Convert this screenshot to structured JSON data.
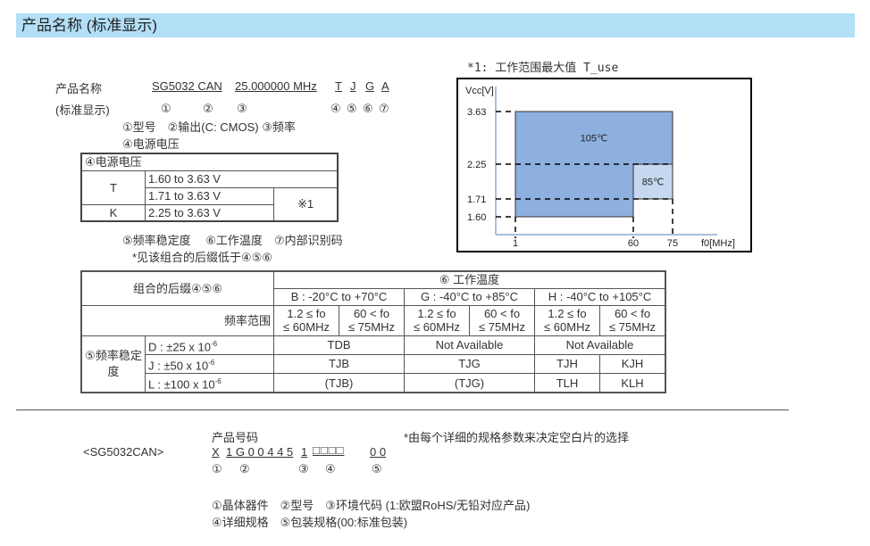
{
  "title": "产品名称 (标准显示)",
  "naming": {
    "label1": "产品名称",
    "label2": "(标准显示)",
    "parts": [
      "SG5032 CAN",
      "25.000000 MHz",
      "T",
      "J",
      "G",
      "A"
    ],
    "markers": [
      "①",
      "②",
      "③",
      "④",
      "⑤",
      "⑥",
      "⑦"
    ],
    "legend1": "①型号　②输出(C: CMOS)  ③频率",
    "legend2": "④电源电压",
    "legend3": "⑤频率稳定度　 ⑥工作温度　⑦内部识别码",
    "legend4": "*见该组合的后缀低于④⑤⑥"
  },
  "voltage_table": {
    "header": "④电源电压",
    "rows": [
      {
        "code": "T",
        "ranges": [
          "1.60 to 3.63 V",
          "1.71 to 3.63 V"
        ]
      },
      {
        "code": "K",
        "ranges": [
          "2.25 to 3.63 V"
        ]
      }
    ],
    "note": "※1"
  },
  "chart_note": "*1: 工作范围最大值 T_use",
  "chart_data": {
    "type": "area",
    "ylabel": "Vcc[V]",
    "xlabel": "f0[MHz]",
    "x_ticks": [
      "1",
      "60",
      "75"
    ],
    "y_ticks": [
      "3.63",
      "2.25",
      "1.71",
      "1.60"
    ],
    "regions": [
      {
        "name": "105℃",
        "x": [
          1,
          75
        ],
        "y": [
          2.25,
          3.63
        ],
        "color": "#8db0e0"
      },
      {
        "name": "",
        "x": [
          1,
          60
        ],
        "y": [
          1.6,
          2.25
        ],
        "color": "#8db0e0"
      },
      {
        "name": "85℃",
        "x": [
          60,
          75
        ],
        "y": [
          1.71,
          2.25
        ],
        "color": "#c5d8f0"
      }
    ]
  },
  "main_table": {
    "corner": "组合的后缀④⑤⑥",
    "temp_header": "⑥ 工作温度",
    "temps": [
      "B : -20°C to +70°C",
      "G : -40°C to +85°C",
      "H : -40°C to +105°C"
    ],
    "freq_label": "频率范围",
    "freq_ranges": [
      [
        "1.2 ≤ fo",
        "≤ 60MHz"
      ],
      [
        "60 < fo",
        "≤ 75MHz"
      ]
    ],
    "stab_label": "⑤频率稳定度",
    "stabs": [
      {
        "code": "D : ±25 x 10",
        "exp": "-6",
        "cells": [
          "TDB",
          "Not Available",
          "Not Available"
        ]
      },
      {
        "code": "J : ±50 x 10",
        "exp": "-6",
        "cells": [
          "TJB",
          "TJG",
          "TJH",
          "KJH"
        ]
      },
      {
        "code": "L : ±100 x 10",
        "exp": "-6",
        "cells": [
          "(TJB)",
          "(TJG)",
          "TLH",
          "KLH"
        ]
      }
    ]
  },
  "part_number": {
    "series": "<SG5032CAN>",
    "label": "产品号码",
    "note": "*由每个详细的规格参数来决定空白片的选择",
    "segments": [
      "X",
      "1 G 0 0 4 4 5",
      "1",
      "□□□□",
      "0 0"
    ],
    "markers": [
      "①",
      "②",
      "③",
      "④",
      "⑤"
    ],
    "legend1": "①晶体器件　②型号　③环境代码 (1:欧盟RoHS/无铅对应产品)",
    "legend2": "④详细规格　⑤包装规格(00:标准包装)"
  }
}
